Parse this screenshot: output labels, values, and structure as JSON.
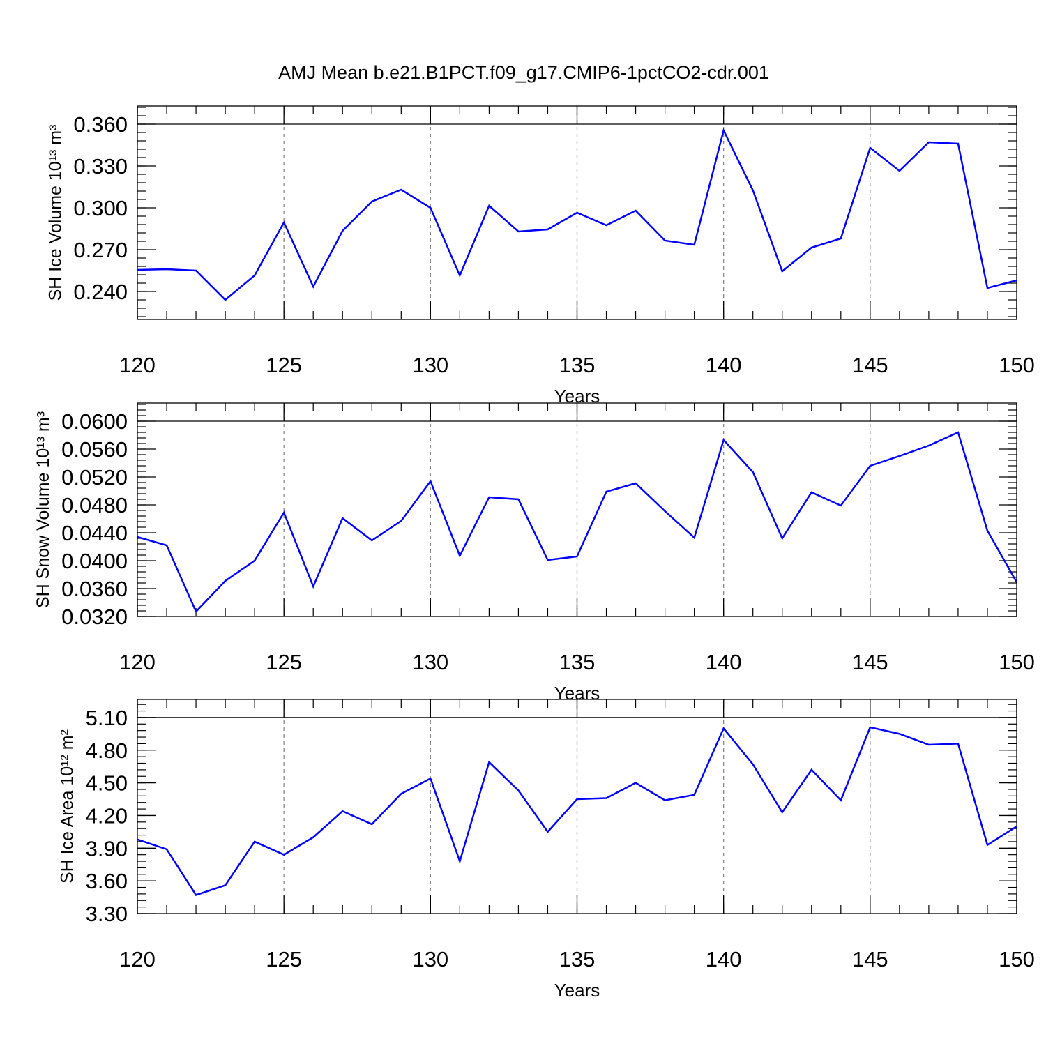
{
  "chart_data": [
    {
      "type": "line",
      "title": "AMJ Mean b.e21.B1PCT.f09_g17.CMIP6-1pctCO2-cdr.001",
      "xlabel": "Years",
      "ylabel": "SH Ice Volume 10¹³ m³",
      "x": [
        120,
        121,
        122,
        123,
        124,
        125,
        126,
        127,
        128,
        129,
        130,
        131,
        132,
        133,
        134,
        135,
        136,
        137,
        138,
        139,
        140,
        141,
        142,
        143,
        144,
        145,
        146,
        147,
        148,
        149,
        150
      ],
      "series": [
        {
          "color": "#0000ff",
          "values": [
            0.2555,
            0.256,
            0.255,
            0.234,
            0.2515,
            0.2895,
            0.2435,
            0.2835,
            0.3045,
            0.313,
            0.3,
            0.2515,
            0.3015,
            0.283,
            0.2845,
            0.2965,
            0.2875,
            0.298,
            0.2765,
            0.2735,
            0.3555,
            0.3125,
            0.2545,
            0.2715,
            0.278,
            0.343,
            0.3265,
            0.347,
            0.346,
            0.2425,
            0.248
          ]
        }
      ],
      "xlim": [
        120,
        150
      ],
      "xticks": [
        120,
        125,
        130,
        135,
        140,
        145,
        150
      ],
      "ylim": [
        0.22,
        0.373
      ],
      "yticks": [
        {
          "value": 0.24,
          "label": "0.240"
        },
        {
          "value": 0.27,
          "label": "0.270"
        },
        {
          "value": 0.3,
          "label": "0.300"
        },
        {
          "value": 0.33,
          "label": "0.330"
        },
        {
          "value": 0.36,
          "label": "0.360"
        }
      ],
      "xgrid": true
    },
    {
      "type": "line",
      "xlabel": "Years",
      "ylabel": "SH Snow Volume 10¹³ m³",
      "x": [
        120,
        121,
        122,
        123,
        124,
        125,
        126,
        127,
        128,
        129,
        130,
        131,
        132,
        133,
        134,
        135,
        136,
        137,
        138,
        139,
        140,
        141,
        142,
        143,
        144,
        145,
        146,
        147,
        148,
        149,
        150
      ],
      "series": [
        {
          "color": "#0000ff",
          "values": [
            0.0434,
            0.0422,
            0.0327,
            0.0371,
            0.04,
            0.0469,
            0.0363,
            0.0461,
            0.0429,
            0.0457,
            0.0514,
            0.0407,
            0.0491,
            0.0488,
            0.0401,
            0.0406,
            0.0499,
            0.0511,
            0.0471,
            0.0433,
            0.0573,
            0.0527,
            0.0432,
            0.0498,
            0.0479,
            0.0536,
            0.055,
            0.0565,
            0.0584,
            0.0443,
            0.0369
          ]
        }
      ],
      "xlim": [
        120,
        150
      ],
      "xticks": [
        120,
        125,
        130,
        135,
        140,
        145,
        150
      ],
      "ylim": [
        0.032,
        0.0626
      ],
      "yticks": [
        {
          "value": 0.032,
          "label": "0.0320"
        },
        {
          "value": 0.036,
          "label": "0.0360"
        },
        {
          "value": 0.04,
          "label": "0.0400"
        },
        {
          "value": 0.044,
          "label": "0.0440"
        },
        {
          "value": 0.048,
          "label": "0.0480"
        },
        {
          "value": 0.052,
          "label": "0.0520"
        },
        {
          "value": 0.056,
          "label": "0.0560"
        },
        {
          "value": 0.06,
          "label": "0.0600"
        }
      ],
      "xgrid": true
    },
    {
      "type": "line",
      "xlabel": "Years",
      "ylabel": "SH Ice Area 10¹² m²",
      "x": [
        120,
        121,
        122,
        123,
        124,
        125,
        126,
        127,
        128,
        129,
        130,
        131,
        132,
        133,
        134,
        135,
        136,
        137,
        138,
        139,
        140,
        141,
        142,
        143,
        144,
        145,
        146,
        147,
        148,
        149,
        150
      ],
      "series": [
        {
          "color": "#0000ff",
          "values": [
            3.98,
            3.89,
            3.47,
            3.56,
            3.96,
            3.84,
            4.0,
            4.24,
            4.12,
            4.4,
            4.54,
            3.78,
            4.69,
            4.43,
            4.05,
            4.35,
            4.36,
            4.5,
            4.34,
            4.39,
            5.0,
            4.67,
            4.23,
            4.62,
            4.34,
            5.01,
            4.95,
            4.85,
            4.86,
            3.93,
            4.1
          ]
        }
      ],
      "xlim": [
        120,
        150
      ],
      "xticks": [
        120,
        125,
        130,
        135,
        140,
        145,
        150
      ],
      "ylim": [
        3.3,
        5.266
      ],
      "yticks": [
        {
          "value": 3.3,
          "label": "3.30"
        },
        {
          "value": 3.6,
          "label": "3.60"
        },
        {
          "value": 3.9,
          "label": "3.90"
        },
        {
          "value": 4.2,
          "label": "4.20"
        },
        {
          "value": 4.5,
          "label": "4.50"
        },
        {
          "value": 4.8,
          "label": "4.80"
        },
        {
          "value": 5.1,
          "label": "5.10"
        }
      ],
      "xgrid": true
    }
  ]
}
